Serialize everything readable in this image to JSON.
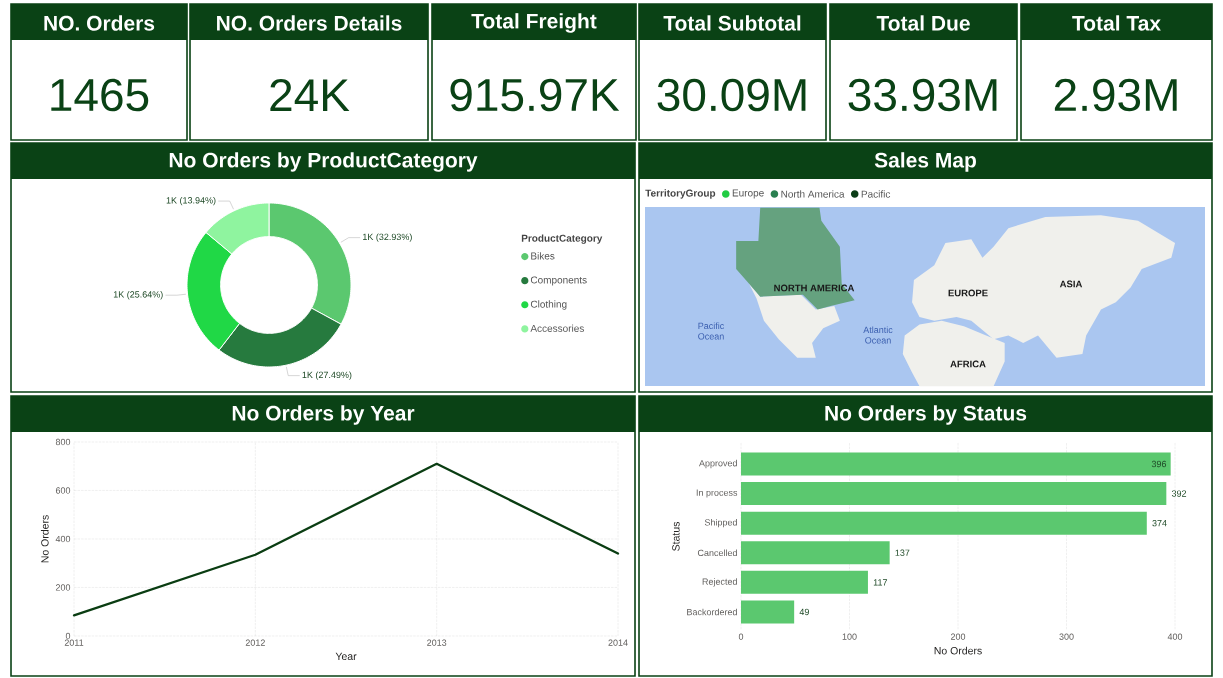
{
  "chart_data": [
    {
      "type": "other",
      "title": "NO. Orders",
      "annotations": [
        "1465"
      ]
    },
    {
      "type": "other",
      "title": "NO. Orders Details",
      "annotations": [
        "24K"
      ]
    },
    {
      "type": "other",
      "title": "Total Freight",
      "annotations": [
        "915.97K"
      ]
    },
    {
      "type": "other",
      "title": "Total Subtotal",
      "annotations": [
        "30.09M"
      ]
    },
    {
      "type": "other",
      "title": "Total Due",
      "annotations": [
        "33.93M"
      ]
    },
    {
      "type": "other",
      "title": "Total Tax",
      "annotations": [
        "2.93M"
      ]
    },
    {
      "type": "donut",
      "title": "No Orders by ProductCategory",
      "categories": [
        "Bikes",
        "Components",
        "Clothing",
        "Accessories"
      ],
      "values": [
        32.93,
        27.49,
        25.64,
        13.94
      ],
      "colors": [
        "#5bc86f",
        "#267a3e",
        "#20d846",
        "#8ff49f"
      ],
      "value_labels": [
        "1K (32.93%)",
        "1K (27.49%)",
        "1K (25.64%)",
        "1K (13.94%)"
      ],
      "legend": "right",
      "legend_title": "ProductCategory"
    },
    {
      "type": "other",
      "title": "Sales Map",
      "legend_title": "TerritoryGroup",
      "legend": "top left",
      "series": [
        {
          "name": "Europe",
          "color": "#22cc44"
        },
        {
          "name": "North America",
          "color": "#2a8050"
        },
        {
          "name": "Pacific",
          "color": "#0b3d16"
        }
      ],
      "annotations": [
        "NORTH AMERICA",
        "EUROPE",
        "ASIA",
        "AFRICA",
        "Pacific Ocean",
        "Atlantic Ocean"
      ]
    },
    {
      "type": "line",
      "title": "No Orders by Year",
      "categories": [
        "2011",
        "2012",
        "2013",
        "2014"
      ],
      "values": [
        85,
        335,
        710,
        340
      ],
      "color": "#0a3d12",
      "xlabel": "Year",
      "ylabel": "No Orders",
      "ylim": [
        0,
        800
      ],
      "yticks": [
        0,
        200,
        400,
        600,
        800
      ],
      "grid": true
    },
    {
      "type": "bar",
      "orientation": "horizontal",
      "title": "No Orders by Status",
      "categories": [
        "Approved",
        "In process",
        "Shipped",
        "Cancelled",
        "Rejected",
        "Backordered"
      ],
      "values": [
        396,
        392,
        374,
        137,
        117,
        49
      ],
      "color": "#5bc86f",
      "xlabel": "No Orders",
      "ylabel": "Status",
      "xlim": [
        0,
        400
      ],
      "xticks": [
        0,
        100,
        200,
        300,
        400
      ],
      "grid": "x",
      "data_labels": true
    }
  ]
}
